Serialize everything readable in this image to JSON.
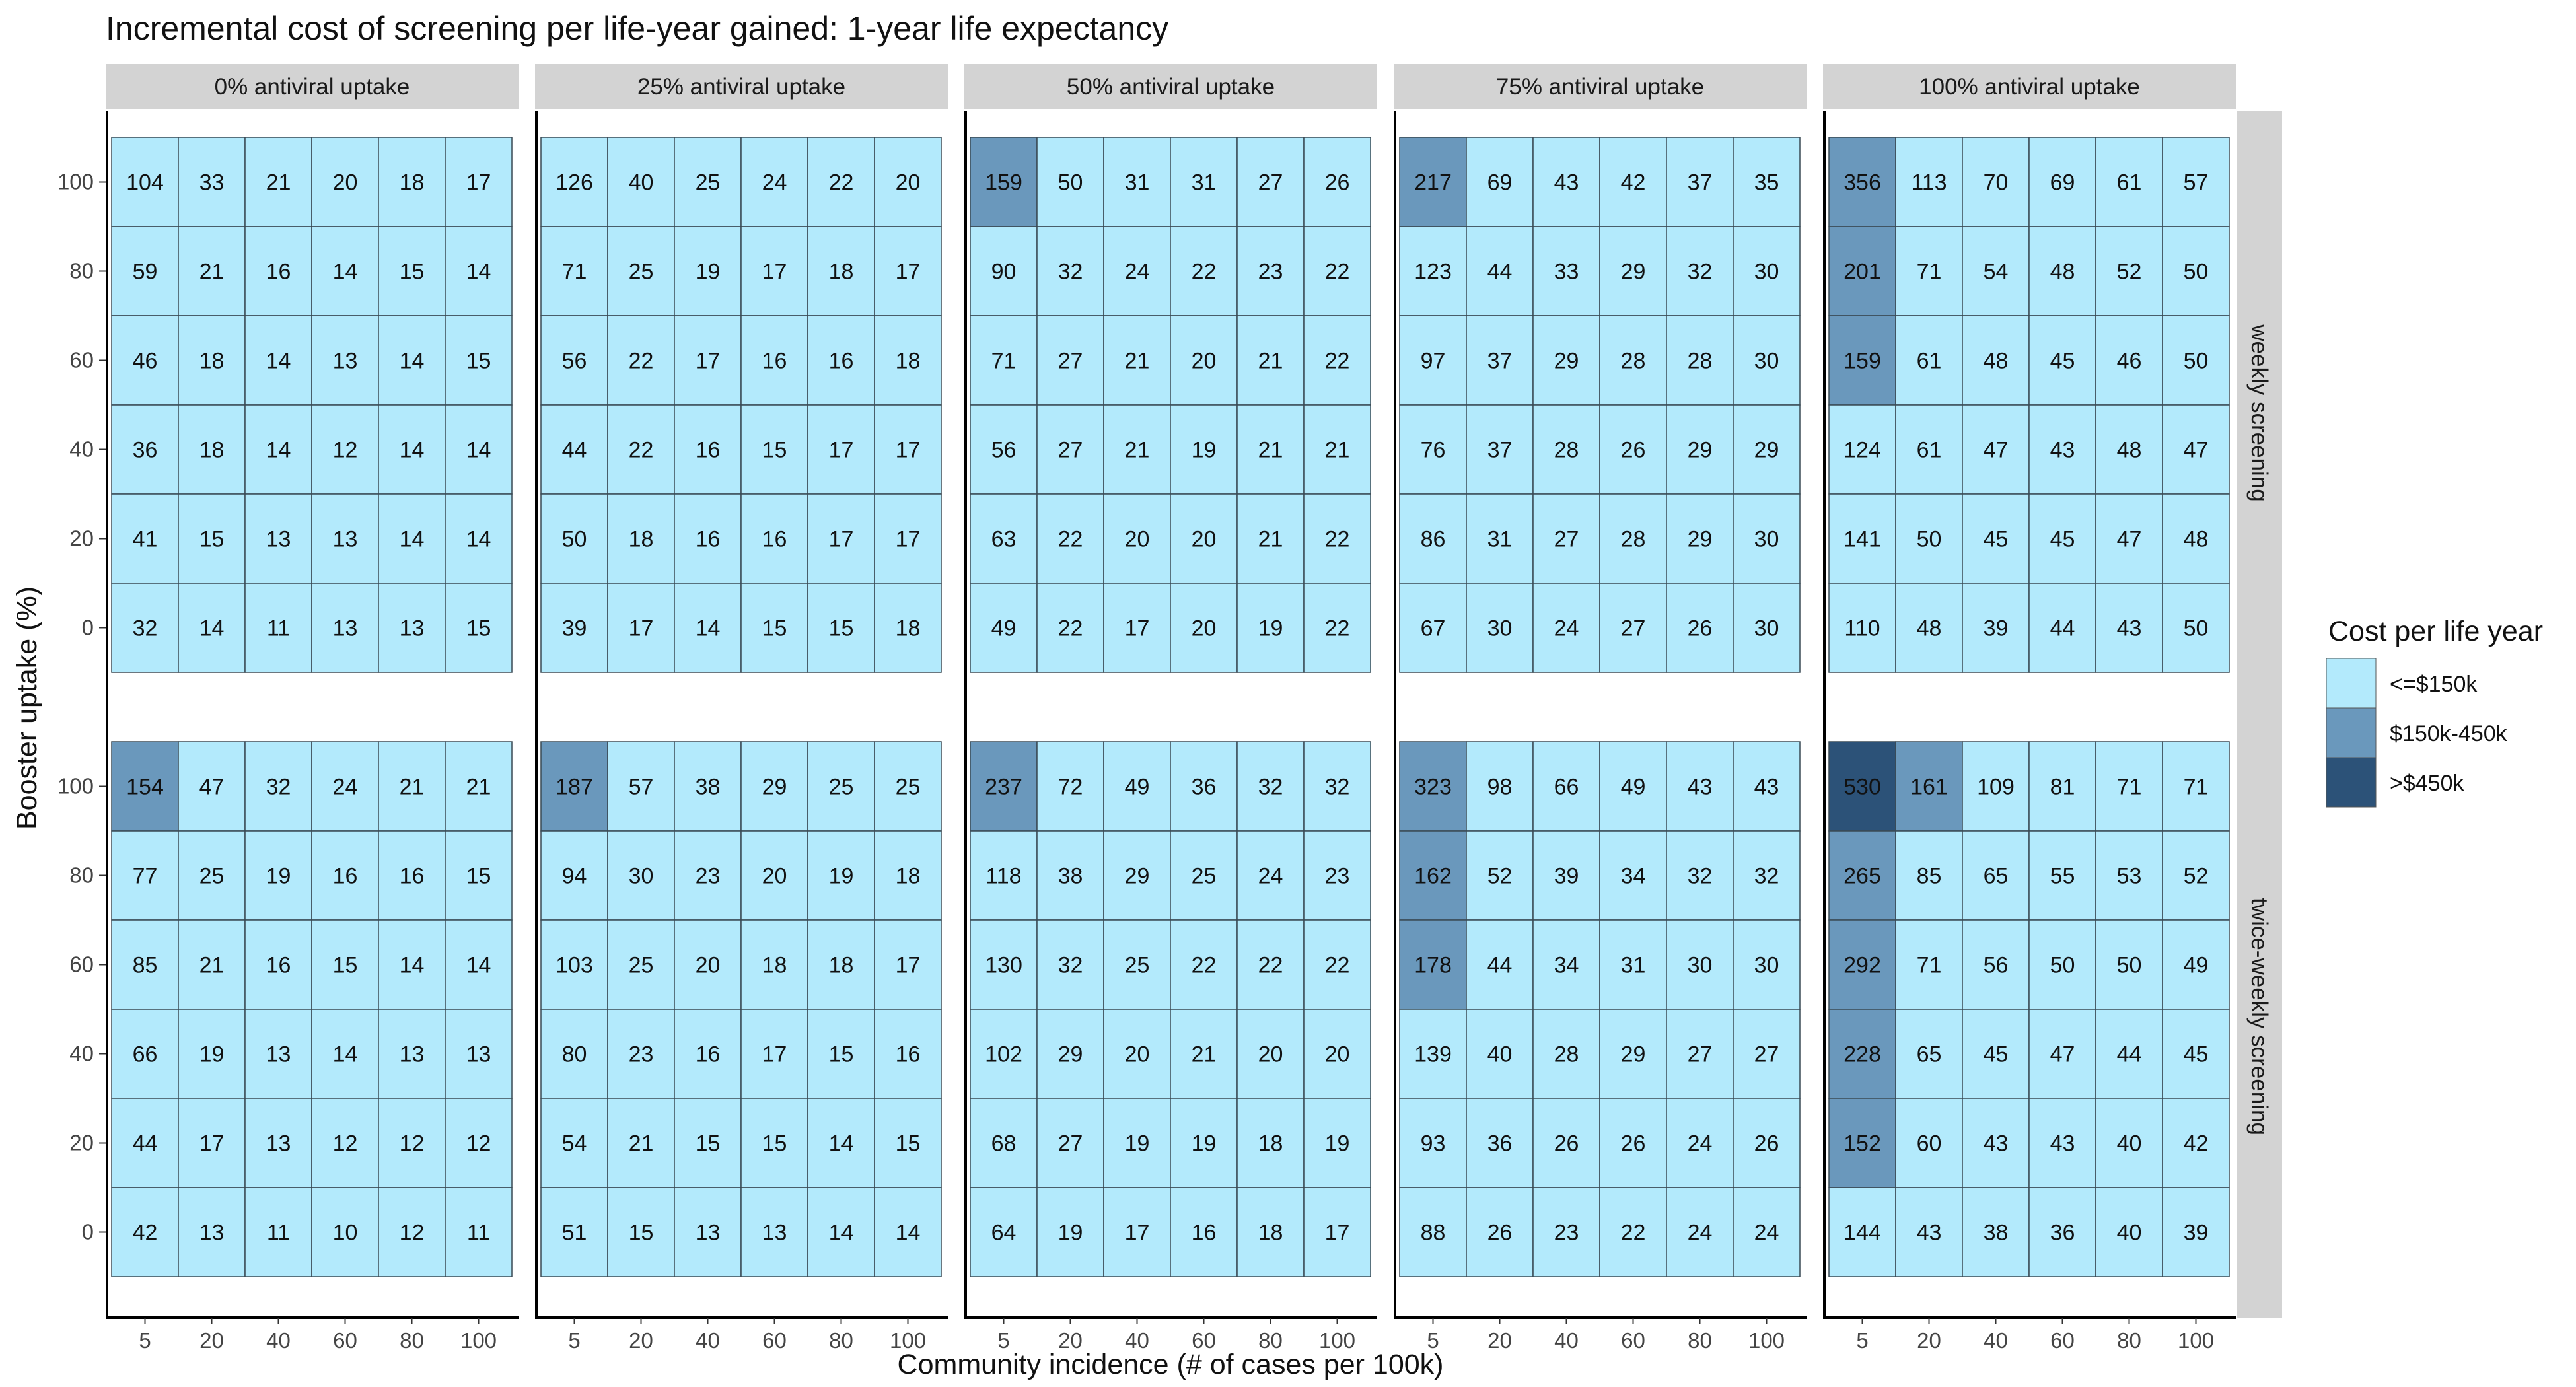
{
  "chart_data": {
    "type": "heatmap",
    "title": "Incremental cost of screening per life-year gained: 1-year life expectancy",
    "xlabel": "Community incidence (# of cases per 100k)",
    "ylabel": "Booster uptake (%)",
    "x_categories": [
      "5",
      "20",
      "40",
      "60",
      "80",
      "100"
    ],
    "y_categories": [
      "100",
      "80",
      "60",
      "40",
      "20",
      "0"
    ],
    "facet_columns": [
      "0% antiviral uptake",
      "25% antiviral uptake",
      "50% antiviral uptake",
      "75% antiviral uptake",
      "100% antiviral uptake"
    ],
    "facet_rows": [
      "weekly screening",
      "twice-weekly screening"
    ],
    "legend": {
      "title": "Cost per life year",
      "position": "right",
      "items": [
        {
          "label": "<=$150k",
          "color": "#b3eafc"
        },
        {
          "label": "$150k-450k",
          "color": "#6a98bc"
        },
        {
          "label": ">$450k",
          "color": "#2c5278"
        }
      ]
    },
    "thresholds": [
      150,
      450
    ],
    "cell_border_color": "#3a4a55",
    "strip_color": "#d3d3d3",
    "grid": false,
    "panels": [
      [
        [
          [
            104,
            33,
            21,
            20,
            18,
            17
          ],
          [
            59,
            21,
            16,
            14,
            15,
            14
          ],
          [
            46,
            18,
            14,
            13,
            14,
            15
          ],
          [
            36,
            18,
            14,
            12,
            14,
            14
          ],
          [
            41,
            15,
            13,
            13,
            14,
            14
          ],
          [
            32,
            14,
            11,
            13,
            13,
            15
          ]
        ],
        [
          [
            126,
            40,
            25,
            24,
            22,
            20
          ],
          [
            71,
            25,
            19,
            17,
            18,
            17
          ],
          [
            56,
            22,
            17,
            16,
            16,
            18
          ],
          [
            44,
            22,
            16,
            15,
            17,
            17
          ],
          [
            50,
            18,
            16,
            16,
            17,
            17
          ],
          [
            39,
            17,
            14,
            15,
            15,
            18
          ]
        ],
        [
          [
            159,
            50,
            31,
            31,
            27,
            26
          ],
          [
            90,
            32,
            24,
            22,
            23,
            22
          ],
          [
            71,
            27,
            21,
            20,
            21,
            22
          ],
          [
            56,
            27,
            21,
            19,
            21,
            21
          ],
          [
            63,
            22,
            20,
            20,
            21,
            22
          ],
          [
            49,
            22,
            17,
            20,
            19,
            22
          ]
        ],
        [
          [
            217,
            69,
            43,
            42,
            37,
            35
          ],
          [
            123,
            44,
            33,
            29,
            32,
            30
          ],
          [
            97,
            37,
            29,
            28,
            28,
            30
          ],
          [
            76,
            37,
            28,
            26,
            29,
            29
          ],
          [
            86,
            31,
            27,
            28,
            29,
            30
          ],
          [
            67,
            30,
            24,
            27,
            26,
            30
          ]
        ],
        [
          [
            356,
            113,
            70,
            69,
            61,
            57
          ],
          [
            201,
            71,
            54,
            48,
            52,
            50
          ],
          [
            159,
            61,
            48,
            45,
            46,
            50
          ],
          [
            124,
            61,
            47,
            43,
            48,
            47
          ],
          [
            141,
            50,
            45,
            45,
            47,
            48
          ],
          [
            110,
            48,
            39,
            44,
            43,
            50
          ]
        ]
      ],
      [
        [
          [
            154,
            47,
            32,
            24,
            21,
            21
          ],
          [
            77,
            25,
            19,
            16,
            16,
            15
          ],
          [
            85,
            21,
            16,
            15,
            14,
            14
          ],
          [
            66,
            19,
            13,
            14,
            13,
            13
          ],
          [
            44,
            17,
            13,
            12,
            12,
            12
          ],
          [
            42,
            13,
            11,
            10,
            12,
            11
          ]
        ],
        [
          [
            187,
            57,
            38,
            29,
            25,
            25
          ],
          [
            94,
            30,
            23,
            20,
            19,
            18
          ],
          [
            103,
            25,
            20,
            18,
            18,
            17
          ],
          [
            80,
            23,
            16,
            17,
            15,
            16
          ],
          [
            54,
            21,
            15,
            15,
            14,
            15
          ],
          [
            51,
            15,
            13,
            13,
            14,
            14
          ]
        ],
        [
          [
            237,
            72,
            49,
            36,
            32,
            32
          ],
          [
            118,
            38,
            29,
            25,
            24,
            23
          ],
          [
            130,
            32,
            25,
            22,
            22,
            22
          ],
          [
            102,
            29,
            20,
            21,
            20,
            20
          ],
          [
            68,
            27,
            19,
            19,
            18,
            19
          ],
          [
            64,
            19,
            17,
            16,
            18,
            17
          ]
        ],
        [
          [
            323,
            98,
            66,
            49,
            43,
            43
          ],
          [
            162,
            52,
            39,
            34,
            32,
            32
          ],
          [
            178,
            44,
            34,
            31,
            30,
            30
          ],
          [
            139,
            40,
            28,
            29,
            27,
            27
          ],
          [
            93,
            36,
            26,
            26,
            24,
            26
          ],
          [
            88,
            26,
            23,
            22,
            24,
            24
          ]
        ],
        [
          [
            530,
            161,
            109,
            81,
            71,
            71
          ],
          [
            265,
            85,
            65,
            55,
            53,
            52
          ],
          [
            292,
            71,
            56,
            50,
            50,
            49
          ],
          [
            228,
            65,
            45,
            47,
            44,
            45
          ],
          [
            152,
            60,
            43,
            43,
            40,
            42
          ],
          [
            144,
            43,
            38,
            36,
            40,
            39
          ]
        ]
      ]
    ]
  }
}
